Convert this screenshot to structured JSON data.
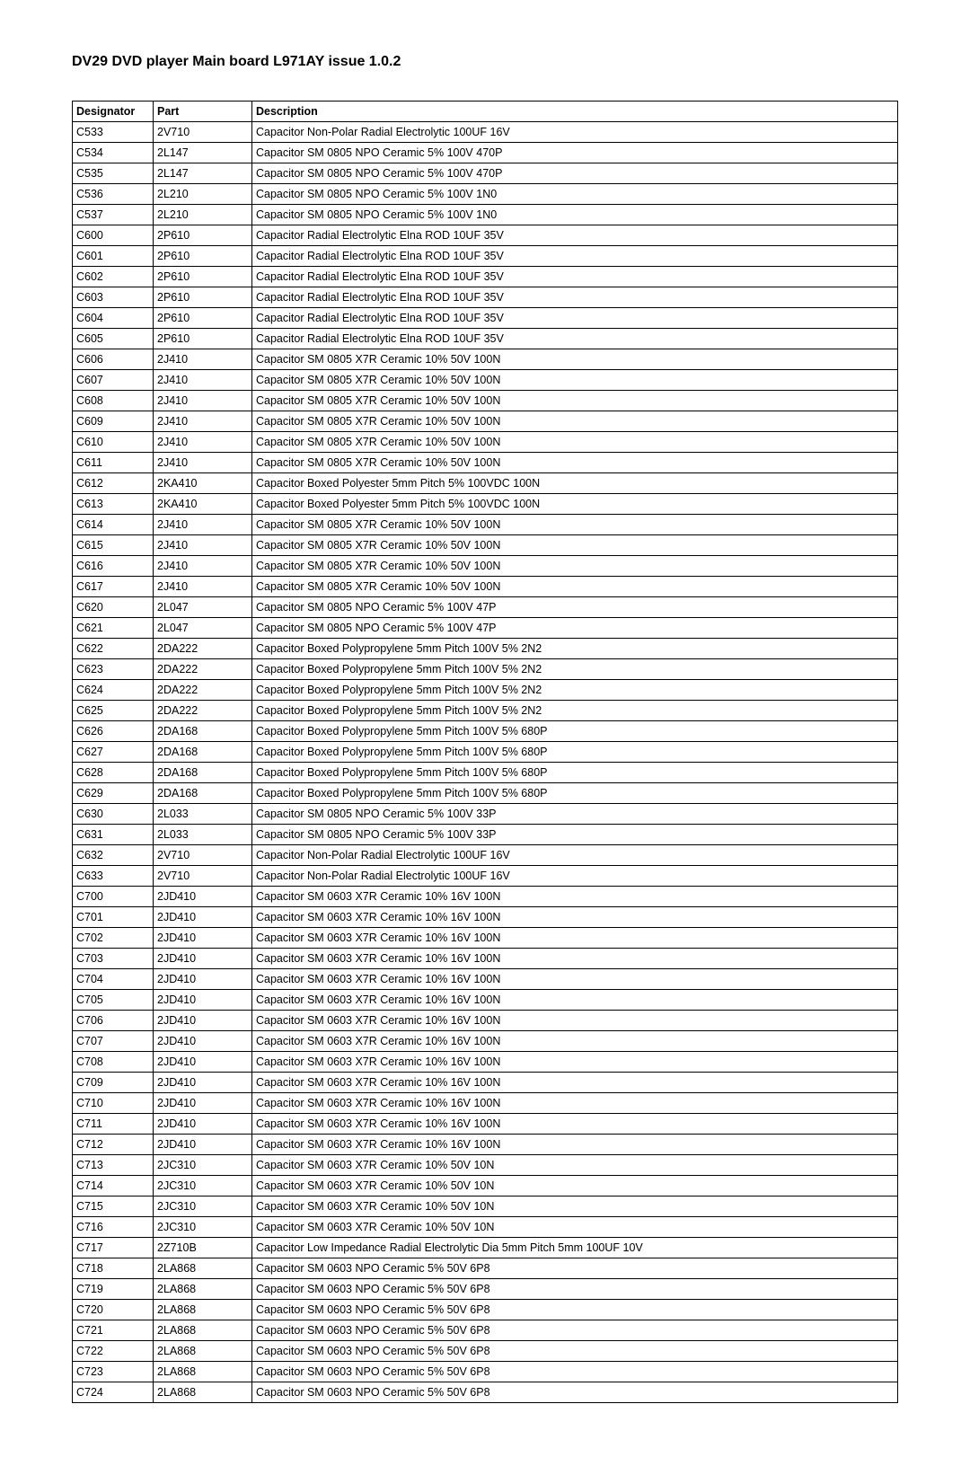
{
  "title": "DV29 DVD player Main board L971AY issue 1.0.2",
  "columns": [
    "Designator",
    "Part",
    "Description"
  ],
  "rows": [
    [
      "C533",
      "2V710",
      "Capacitor Non-Polar Radial Electrolytic 100UF 16V"
    ],
    [
      "C534",
      "2L147",
      "Capacitor SM 0805 NPO Ceramic 5% 100V 470P"
    ],
    [
      "C535",
      "2L147",
      "Capacitor SM 0805 NPO Ceramic 5% 100V 470P"
    ],
    [
      "C536",
      "2L210",
      "Capacitor SM 0805 NPO Ceramic 5% 100V 1N0"
    ],
    [
      "C537",
      "2L210",
      "Capacitor SM 0805 NPO Ceramic 5% 100V 1N0"
    ],
    [
      "C600",
      "2P610",
      "Capacitor Radial Electrolytic Elna ROD 10UF 35V"
    ],
    [
      "C601",
      "2P610",
      "Capacitor Radial Electrolytic Elna ROD 10UF 35V"
    ],
    [
      "C602",
      "2P610",
      "Capacitor Radial Electrolytic Elna ROD 10UF 35V"
    ],
    [
      "C603",
      "2P610",
      "Capacitor Radial Electrolytic Elna ROD 10UF 35V"
    ],
    [
      "C604",
      "2P610",
      "Capacitor Radial Electrolytic Elna ROD 10UF 35V"
    ],
    [
      "C605",
      "2P610",
      "Capacitor Radial Electrolytic Elna ROD 10UF 35V"
    ],
    [
      "C606",
      "2J410",
      "Capacitor SM 0805 X7R Ceramic 10% 50V 100N"
    ],
    [
      "C607",
      "2J410",
      "Capacitor SM 0805 X7R Ceramic 10% 50V 100N"
    ],
    [
      "C608",
      "2J410",
      "Capacitor SM 0805 X7R Ceramic 10% 50V 100N"
    ],
    [
      "C609",
      "2J410",
      "Capacitor SM 0805 X7R Ceramic 10% 50V 100N"
    ],
    [
      "C610",
      "2J410",
      "Capacitor SM 0805 X7R Ceramic 10% 50V 100N"
    ],
    [
      "C611",
      "2J410",
      "Capacitor SM 0805 X7R Ceramic 10% 50V 100N"
    ],
    [
      "C612",
      "2KA410",
      "Capacitor Boxed Polyester 5mm Pitch 5% 100VDC 100N"
    ],
    [
      "C613",
      "2KA410",
      "Capacitor Boxed Polyester 5mm Pitch 5% 100VDC 100N"
    ],
    [
      "C614",
      "2J410",
      "Capacitor SM 0805 X7R Ceramic 10% 50V 100N"
    ],
    [
      "C615",
      "2J410",
      "Capacitor SM 0805 X7R Ceramic 10% 50V 100N"
    ],
    [
      "C616",
      "2J410",
      "Capacitor SM 0805 X7R Ceramic 10% 50V 100N"
    ],
    [
      "C617",
      "2J410",
      "Capacitor SM 0805 X7R Ceramic 10% 50V 100N"
    ],
    [
      "C620",
      "2L047",
      "Capacitor SM 0805 NPO Ceramic 5% 100V 47P"
    ],
    [
      "C621",
      "2L047",
      "Capacitor SM 0805 NPO Ceramic 5% 100V 47P"
    ],
    [
      "C622",
      "2DA222",
      "Capacitor Boxed Polypropylene 5mm Pitch 100V 5% 2N2"
    ],
    [
      "C623",
      "2DA222",
      "Capacitor Boxed Polypropylene 5mm Pitch 100V 5% 2N2"
    ],
    [
      "C624",
      "2DA222",
      "Capacitor Boxed Polypropylene 5mm Pitch 100V 5% 2N2"
    ],
    [
      "C625",
      "2DA222",
      "Capacitor Boxed Polypropylene 5mm Pitch 100V 5% 2N2"
    ],
    [
      "C626",
      "2DA168",
      "Capacitor Boxed Polypropylene 5mm Pitch 100V 5% 680P"
    ],
    [
      "C627",
      "2DA168",
      "Capacitor Boxed Polypropylene 5mm Pitch 100V 5% 680P"
    ],
    [
      "C628",
      "2DA168",
      "Capacitor Boxed Polypropylene 5mm Pitch 100V 5% 680P"
    ],
    [
      "C629",
      "2DA168",
      "Capacitor Boxed Polypropylene 5mm Pitch 100V 5% 680P"
    ],
    [
      "C630",
      "2L033",
      "Capacitor SM 0805 NPO Ceramic 5% 100V 33P"
    ],
    [
      "C631",
      "2L033",
      "Capacitor SM 0805 NPO Ceramic 5% 100V 33P"
    ],
    [
      "C632",
      "2V710",
      "Capacitor Non-Polar Radial Electrolytic 100UF 16V"
    ],
    [
      "C633",
      "2V710",
      "Capacitor Non-Polar Radial Electrolytic 100UF 16V"
    ],
    [
      "C700",
      "2JD410",
      "Capacitor SM 0603 X7R Ceramic 10% 16V 100N"
    ],
    [
      "C701",
      "2JD410",
      "Capacitor SM 0603 X7R Ceramic 10% 16V 100N"
    ],
    [
      "C702",
      "2JD410",
      "Capacitor SM 0603 X7R Ceramic 10% 16V 100N"
    ],
    [
      "C703",
      "2JD410",
      "Capacitor SM 0603 X7R Ceramic 10% 16V 100N"
    ],
    [
      "C704",
      "2JD410",
      "Capacitor SM 0603 X7R Ceramic 10% 16V 100N"
    ],
    [
      "C705",
      "2JD410",
      "Capacitor SM 0603 X7R Ceramic 10% 16V 100N"
    ],
    [
      "C706",
      "2JD410",
      "Capacitor SM 0603 X7R Ceramic 10% 16V 100N"
    ],
    [
      "C707",
      "2JD410",
      "Capacitor SM 0603 X7R Ceramic 10% 16V 100N"
    ],
    [
      "C708",
      "2JD410",
      "Capacitor SM 0603 X7R Ceramic 10% 16V 100N"
    ],
    [
      "C709",
      "2JD410",
      "Capacitor SM 0603 X7R Ceramic 10% 16V 100N"
    ],
    [
      "C710",
      "2JD410",
      "Capacitor SM 0603 X7R Ceramic 10% 16V 100N"
    ],
    [
      "C711",
      "2JD410",
      "Capacitor SM 0603 X7R Ceramic 10% 16V 100N"
    ],
    [
      "C712",
      "2JD410",
      "Capacitor SM 0603 X7R Ceramic 10% 16V 100N"
    ],
    [
      "C713",
      "2JC310",
      "Capacitor SM 0603 X7R Ceramic 10% 50V 10N"
    ],
    [
      "C714",
      "2JC310",
      "Capacitor SM 0603 X7R Ceramic 10% 50V 10N"
    ],
    [
      "C715",
      "2JC310",
      "Capacitor SM 0603 X7R Ceramic 10% 50V 10N"
    ],
    [
      "C716",
      "2JC310",
      "Capacitor SM 0603 X7R Ceramic 10% 50V 10N"
    ],
    [
      "C717",
      "2Z710B",
      "Capacitor Low Impedance Radial Electrolytic Dia 5mm Pitch 5mm 100UF 10V"
    ],
    [
      "C718",
      "2LA868",
      "Capacitor SM 0603 NPO Ceramic 5% 50V 6P8"
    ],
    [
      "C719",
      "2LA868",
      "Capacitor SM 0603 NPO Ceramic 5% 50V 6P8"
    ],
    [
      "C720",
      "2LA868",
      "Capacitor SM 0603 NPO Ceramic 5% 50V 6P8"
    ],
    [
      "C721",
      "2LA868",
      "Capacitor SM 0603 NPO Ceramic 5% 50V 6P8"
    ],
    [
      "C722",
      "2LA868",
      "Capacitor SM 0603 NPO Ceramic 5% 50V 6P8"
    ],
    [
      "C723",
      "2LA868",
      "Capacitor SM 0603 NPO Ceramic 5% 50V 6P8"
    ],
    [
      "C724",
      "2LA868",
      "Capacitor SM 0603 NPO Ceramic 5% 50V 6P8"
    ]
  ]
}
